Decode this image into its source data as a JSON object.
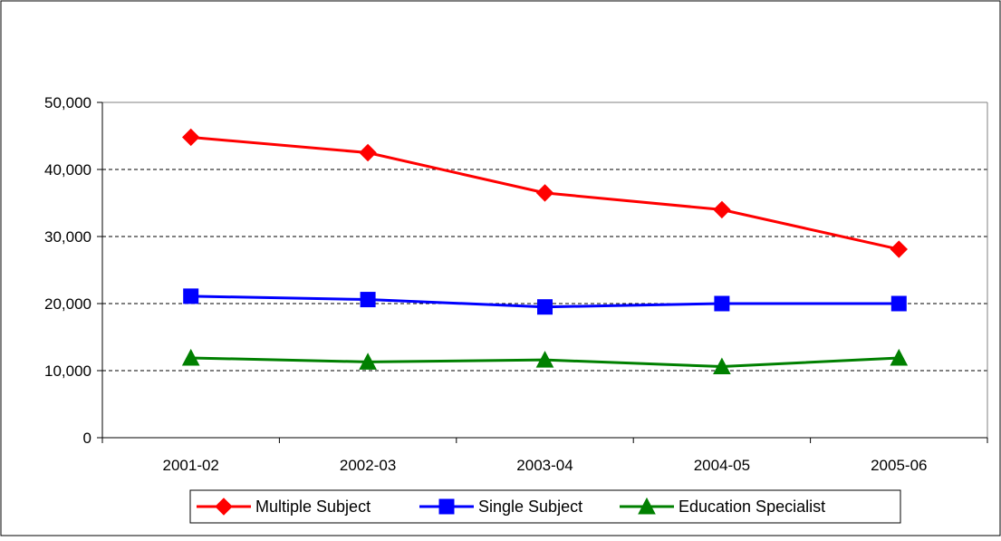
{
  "chart_data": {
    "type": "line",
    "title": "",
    "xlabel": "",
    "ylabel": "",
    "categories": [
      "2001-02",
      "2002-03",
      "2003-04",
      "2004-05",
      "2005-06"
    ],
    "ylim": [
      0,
      50000
    ],
    "yticks": [
      0,
      10000,
      20000,
      30000,
      40000,
      50000
    ],
    "ytick_labels": [
      "0",
      "10,000",
      "20,000",
      "30,000",
      "40,000",
      "50,000"
    ],
    "grid": "horizontal dashed",
    "legend_position": "bottom",
    "series": [
      {
        "name": "Multiple Subject",
        "values": [
          44800,
          42500,
          36500,
          34000,
          28100
        ],
        "color": "#ff0000",
        "marker": "diamond"
      },
      {
        "name": "Single Subject",
        "values": [
          21100,
          20600,
          19500,
          20000,
          20000
        ],
        "color": "#0000ff",
        "marker": "square"
      },
      {
        "name": "Education Specialist",
        "values": [
          11900,
          11300,
          11600,
          10600,
          11900
        ],
        "color": "#008000",
        "marker": "triangle"
      }
    ]
  }
}
